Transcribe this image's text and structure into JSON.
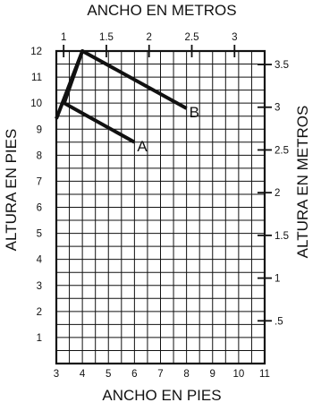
{
  "chart_data": {
    "type": "line",
    "title": "",
    "xlabel": "ANCHO EN PIES",
    "ylabel": "ALTURA EN PIES",
    "x2label": "ANCHO EN METROS",
    "y2label": "ALTURA EN METROS",
    "xlim": [
      3,
      11
    ],
    "ylim": [
      0,
      12
    ],
    "x_ticks": [
      3,
      4,
      5,
      6,
      7,
      8,
      9,
      10,
      11
    ],
    "y_ticks": [
      1,
      2,
      3,
      4,
      5,
      6,
      7,
      8,
      9,
      10,
      11,
      12
    ],
    "x2_ticks": [
      {
        "value": 1,
        "label": "1"
      },
      {
        "value": 1.5,
        "label": "1.5"
      },
      {
        "value": 2,
        "label": "2"
      },
      {
        "value": 2.5,
        "label": "2.5"
      },
      {
        "value": 3,
        "label": "3"
      }
    ],
    "y2_ticks": [
      {
        "value": 0.5,
        "label": ".5"
      },
      {
        "value": 1,
        "label": "1"
      },
      {
        "value": 1.5,
        "label": "1.5"
      },
      {
        "value": 2,
        "label": "2"
      },
      {
        "value": 2.5,
        "label": "2.5"
      },
      {
        "value": 3,
        "label": "3"
      },
      {
        "value": 3.5,
        "label": "3.5"
      }
    ],
    "grid": true,
    "series": [
      {
        "name": "A",
        "points": [
          {
            "x": 3,
            "y": 9.4
          },
          {
            "x": 4,
            "y": 12
          },
          {
            "x": 3.3,
            "y": 10
          },
          {
            "x": 6,
            "y": 8.5
          }
        ]
      },
      {
        "name": "B",
        "points": [
          {
            "x": 4,
            "y": 12
          },
          {
            "x": 8,
            "y": 9.8
          }
        ]
      }
    ]
  }
}
